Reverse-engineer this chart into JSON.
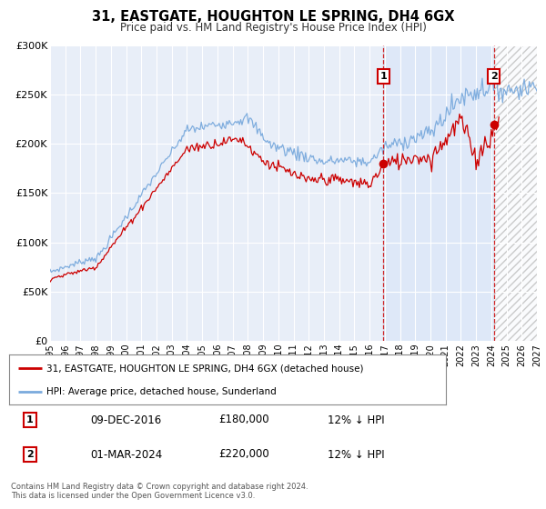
{
  "title": "31, EASTGATE, HOUGHTON LE SPRING, DH4 6GX",
  "subtitle": "Price paid vs. HM Land Registry's House Price Index (HPI)",
  "legend_entry1": "31, EASTGATE, HOUGHTON LE SPRING, DH4 6GX (detached house)",
  "legend_entry2": "HPI: Average price, detached house, Sunderland",
  "marker1_date": 2016.92,
  "marker1_value": 180000,
  "marker1_label": "1",
  "marker1_text": "09-DEC-2016",
  "marker1_price": "£180,000",
  "marker1_hpi": "12% ↓ HPI",
  "marker2_date": 2024.17,
  "marker2_value": 220000,
  "marker2_label": "2",
  "marker2_text": "01-MAR-2024",
  "marker2_price": "£220,000",
  "marker2_hpi": "12% ↓ HPI",
  "xmin": 1995.0,
  "xmax": 2027.0,
  "ymin": 0,
  "ymax": 300000,
  "yticks": [
    0,
    50000,
    100000,
    150000,
    200000,
    250000,
    300000
  ],
  "ytick_labels": [
    "£0",
    "£50K",
    "£100K",
    "£150K",
    "£200K",
    "£250K",
    "£300K"
  ],
  "red_color": "#cc0000",
  "blue_color": "#7aaadd",
  "shade_color": "#dde8f8",
  "background_color": "#e8eef8",
  "grid_color": "#ffffff",
  "footer": "Contains HM Land Registry data © Crown copyright and database right 2024.\nThis data is licensed under the Open Government Licence v3.0.",
  "xticks": [
    1995,
    1996,
    1997,
    1998,
    1999,
    2000,
    2001,
    2002,
    2003,
    2004,
    2005,
    2006,
    2007,
    2008,
    2009,
    2010,
    2011,
    2012,
    2013,
    2014,
    2015,
    2016,
    2017,
    2018,
    2019,
    2020,
    2021,
    2022,
    2023,
    2024,
    2025,
    2026,
    2027
  ]
}
